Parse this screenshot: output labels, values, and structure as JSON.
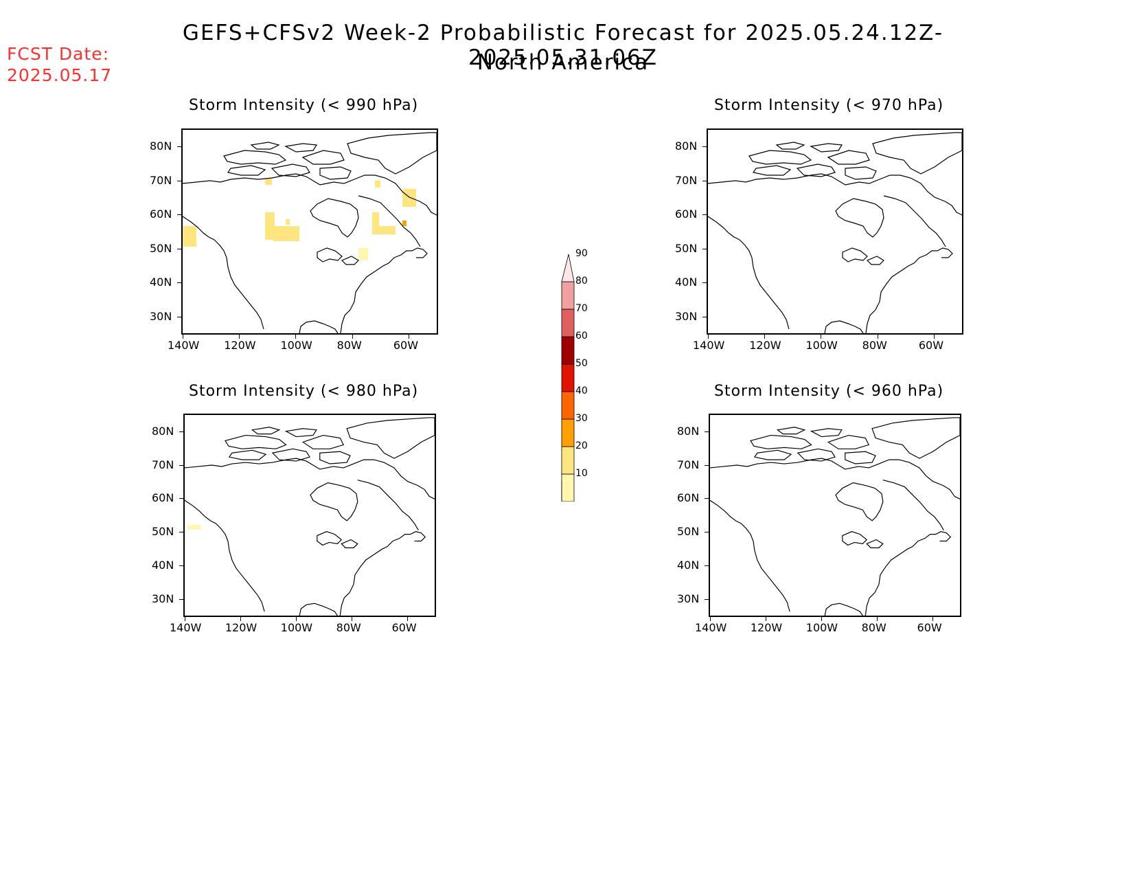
{
  "header": {
    "title": "GEFS+CFSv2 Week-2 Probabilistic Forecast for 2025.05.24.12Z-2025.05.31.06Z",
    "subtitle": "North America",
    "fcst_label": "FCST Date:",
    "fcst_date": "2025.05.17"
  },
  "panels": [
    {
      "title": "Storm Intensity (< 990 hPa)"
    },
    {
      "title": "Storm Intensity (< 970 hPa)"
    },
    {
      "title": "Storm Intensity (< 980 hPa)"
    },
    {
      "title": "Storm Intensity (< 960 hPa)"
    }
  ],
  "axes": {
    "lat_ticks": [
      "80N",
      "70N",
      "60N",
      "50N",
      "40N",
      "30N"
    ],
    "lon_ticks": [
      "140W",
      "120W",
      "100W",
      "80W",
      "60W"
    ]
  },
  "colorbar": {
    "levels": [
      "10",
      "20",
      "30",
      "40",
      "50",
      "60",
      "70",
      "80",
      "90"
    ],
    "colors": [
      "#fff6b0",
      "#ffe580",
      "#ffa000",
      "#ff6400",
      "#e01400",
      "#a00000",
      "#e06060",
      "#f0a0a0",
      "#ffe6e6"
    ]
  },
  "colors": {
    "fcst": "#ff3030"
  }
}
